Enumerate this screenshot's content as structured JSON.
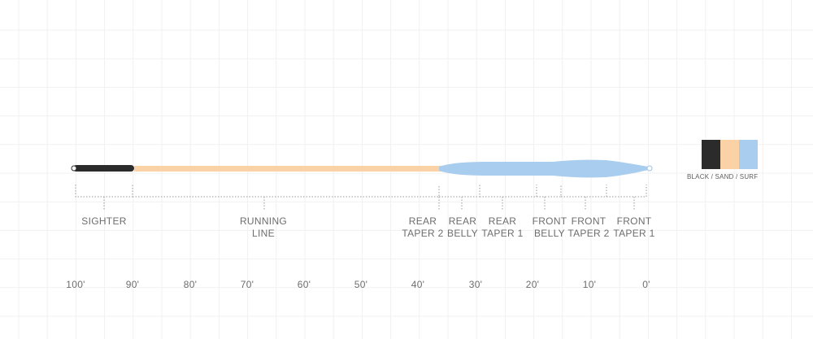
{
  "colors": {
    "black": "#2b2b2b",
    "sand": "#fbd2a6",
    "surf": "#a9cdee",
    "surf_outline": "#9dc3e8",
    "grid": "#f1f1f1",
    "guide": "#9a9a9a"
  },
  "segments": [
    {
      "id": "sighter",
      "lines": [
        "SIGHTER"
      ]
    },
    {
      "id": "running-line",
      "lines": [
        "RUNNING",
        "LINE"
      ]
    },
    {
      "id": "rear-taper-2",
      "lines": [
        "REAR",
        "TAPER 2"
      ]
    },
    {
      "id": "rear-belly",
      "lines": [
        "REAR",
        "BELLY"
      ]
    },
    {
      "id": "rear-taper-1",
      "lines": [
        "REAR",
        "TAPER 1"
      ]
    },
    {
      "id": "front-belly",
      "lines": [
        "FRONT",
        "BELLY"
      ]
    },
    {
      "id": "front-taper-2",
      "lines": [
        "FRONT",
        "TAPER 2"
      ]
    },
    {
      "id": "front-taper-1",
      "lines": [
        "FRONT",
        "TAPER 1"
      ]
    }
  ],
  "axis": {
    "ticks": [
      "100'",
      "90'",
      "80'",
      "70'",
      "60'",
      "50'",
      "40'",
      "30'",
      "20'",
      "10'",
      "0'"
    ]
  },
  "legend": {
    "label": "BLACK / SAND / SURF",
    "swatches": [
      "black",
      "sand",
      "surf"
    ]
  }
}
